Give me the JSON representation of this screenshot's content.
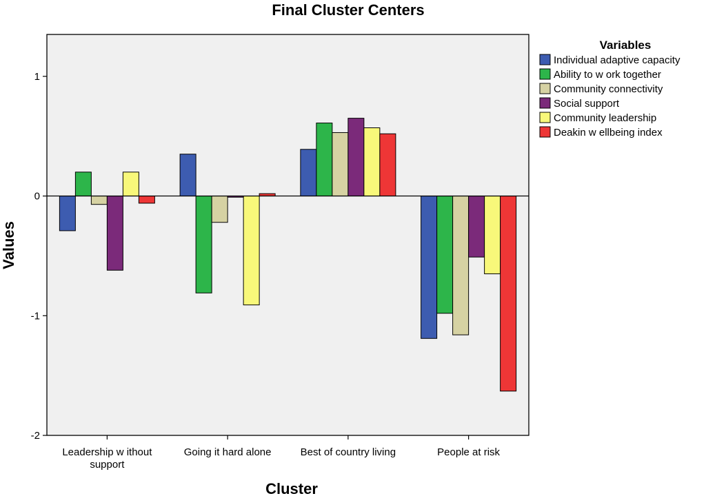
{
  "chart_data": {
    "type": "bar",
    "title": "Final Cluster Centers",
    "xlabel": "Cluster",
    "ylabel": "Values",
    "ylim": [
      -2,
      1.35
    ],
    "yticks": [
      -2,
      -1,
      0,
      1
    ],
    "ytick_labels": [
      "-2",
      "-1",
      "0",
      "1"
    ],
    "categories": [
      [
        "Leadership w ithout",
        "support"
      ],
      [
        "Going it hard alone"
      ],
      [
        "Best of country living"
      ],
      [
        "People at risk"
      ]
    ],
    "legend_title": "Variables",
    "series": [
      {
        "name": "Individual adaptive capacity",
        "color": "#3d5cb0",
        "values": [
          -0.29,
          0.35,
          0.39,
          -1.19
        ]
      },
      {
        "name": "Ability to w ork together",
        "color": "#2db54a",
        "values": [
          0.2,
          -0.81,
          0.61,
          -0.98
        ]
      },
      {
        "name": "Community connectivity",
        "color": "#d6d2a3",
        "values": [
          -0.07,
          -0.22,
          0.53,
          -1.16
        ]
      },
      {
        "name": "Social support",
        "color": "#7b2a7a",
        "values": [
          -0.62,
          -0.01,
          0.65,
          -0.51
        ]
      },
      {
        "name": "Community leadership",
        "color": "#f8f87a",
        "values": [
          0.2,
          -0.91,
          0.57,
          -0.65
        ]
      },
      {
        "name": "Deakin w ellbeing index",
        "color": "#ee3636",
        "values": [
          -0.06,
          0.02,
          0.52,
          -1.63
        ]
      }
    ]
  }
}
